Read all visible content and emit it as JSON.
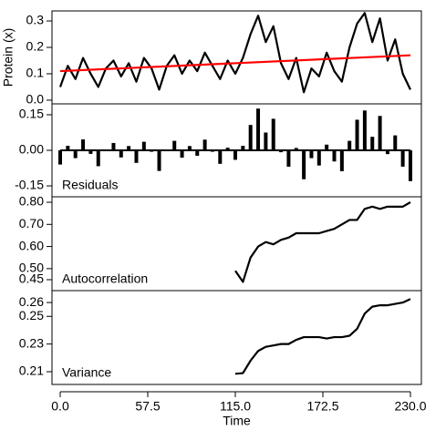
{
  "chart_data": [
    {
      "type": "line",
      "ylabel": "Protein (x)",
      "x": [
        0,
        5,
        10,
        15,
        20,
        25,
        30,
        35,
        40,
        45,
        50,
        55,
        60,
        65,
        70,
        75,
        80,
        85,
        90,
        95,
        100,
        105,
        110,
        115,
        120,
        125,
        130,
        135,
        140,
        145,
        150,
        155,
        160,
        165,
        170,
        175,
        180,
        185,
        190,
        195,
        200,
        205,
        210,
        215,
        220,
        225,
        230
      ],
      "series": [
        {
          "color": "#000000",
          "values": [
            0.05,
            0.13,
            0.08,
            0.16,
            0.1,
            0.05,
            0.12,
            0.15,
            0.09,
            0.14,
            0.07,
            0.16,
            0.12,
            0.04,
            0.13,
            0.17,
            0.1,
            0.15,
            0.11,
            0.18,
            0.13,
            0.08,
            0.15,
            0.1,
            0.16,
            0.25,
            0.32,
            0.22,
            0.28,
            0.14,
            0.08,
            0.16,
            0.03,
            0.12,
            0.09,
            0.18,
            0.11,
            0.07,
            0.2,
            0.29,
            0.33,
            0.22,
            0.31,
            0.15,
            0.23,
            0.1,
            0.04
          ]
        },
        {
          "color": "#ff0000",
          "x": [
            0,
            230
          ],
          "values": [
            0.11,
            0.17
          ]
        }
      ],
      "ylim": [
        -0.014,
        0.338
      ],
      "yticks": [
        {
          "value": 0,
          "label": "0.0"
        },
        0.1,
        0.2,
        0.3
      ]
    },
    {
      "type": "bar",
      "annotation": "Residuals",
      "x": [
        0,
        5,
        10,
        15,
        20,
        25,
        30,
        35,
        40,
        45,
        50,
        55,
        60,
        65,
        70,
        75,
        80,
        85,
        90,
        95,
        100,
        105,
        110,
        115,
        120,
        125,
        130,
        135,
        140,
        145,
        150,
        155,
        160,
        165,
        170,
        175,
        180,
        185,
        190,
        195,
        200,
        205,
        210,
        215,
        220,
        225,
        230
      ],
      "values": [
        -0.06,
        0.019,
        -0.033,
        0.046,
        -0.015,
        -0.067,
        0.002,
        0.031,
        -0.03,
        0.018,
        -0.053,
        0.036,
        -0.006,
        -0.087,
        0.002,
        0.04,
        -0.031,
        0.018,
        -0.023,
        0.045,
        -0.006,
        -0.057,
        0.011,
        -0.04,
        0.019,
        0.107,
        0.176,
        0.075,
        0.133,
        -0.008,
        -0.069,
        0.01,
        -0.122,
        -0.033,
        -0.064,
        0.024,
        -0.047,
        -0.088,
        0.04,
        0.129,
        0.168,
        0.057,
        0.145,
        -0.016,
        0.063,
        -0.069,
        -0.13
      ],
      "color": "#000000",
      "ylim": [
        -0.196,
        0.196
      ],
      "yticks": [
        {
          "value": 0.15,
          "label": "0.15"
        },
        {
          "value": 0,
          "label": "0.00"
        },
        {
          "value": -0.15,
          "label": "-0.15"
        }
      ]
    },
    {
      "type": "line",
      "annotation": "Autocorrelation",
      "x": [
        115,
        120,
        125,
        130,
        135,
        140,
        145,
        150,
        155,
        160,
        165,
        170,
        175,
        180,
        185,
        190,
        195,
        200,
        205,
        210,
        215,
        220,
        225,
        230
      ],
      "series": [
        {
          "color": "#000000",
          "values": [
            0.49,
            0.44,
            0.55,
            0.6,
            0.62,
            0.61,
            0.63,
            0.64,
            0.66,
            0.66,
            0.66,
            0.66,
            0.67,
            0.68,
            0.7,
            0.72,
            0.72,
            0.77,
            0.78,
            0.77,
            0.78,
            0.78,
            0.78,
            0.8
          ]
        }
      ],
      "ylim": [
        0.4006,
        0.8247
      ],
      "yticks": [
        0.45,
        {
          "value": 0.5,
          "label": "0.50"
        },
        {
          "value": 0.6,
          "label": "0.60"
        },
        {
          "value": 0.7,
          "label": "0.70"
        },
        {
          "value": 0.8,
          "label": "0.80"
        }
      ]
    },
    {
      "type": "line",
      "annotation": "Variance",
      "xlabel": "Time",
      "x": [
        115,
        120,
        125,
        130,
        135,
        140,
        145,
        150,
        155,
        160,
        165,
        170,
        175,
        180,
        185,
        190,
        195,
        200,
        205,
        210,
        215,
        220,
        225,
        230
      ],
      "series": [
        {
          "color": "#000000",
          "values": [
            0.2085,
            0.209,
            0.218,
            0.225,
            0.228,
            0.229,
            0.23,
            0.23,
            0.233,
            0.235,
            0.235,
            0.235,
            0.234,
            0.235,
            0.235,
            0.236,
            0.241,
            0.252,
            0.257,
            0.258,
            0.258,
            0.259,
            0.26,
            0.2625
          ]
        }
      ],
      "ylim": [
        0.2008,
        0.2686
      ],
      "yticks": [
        0.21,
        0.23,
        0.25,
        0.26
      ],
      "xlim": [
        -5.4,
        237.2
      ],
      "xticks": [
        {
          "value": 0,
          "label": "0.0"
        },
        57.5,
        {
          "value": 115,
          "label": "115.0"
        },
        172.5,
        {
          "value": 230,
          "label": "230.0"
        }
      ]
    }
  ]
}
